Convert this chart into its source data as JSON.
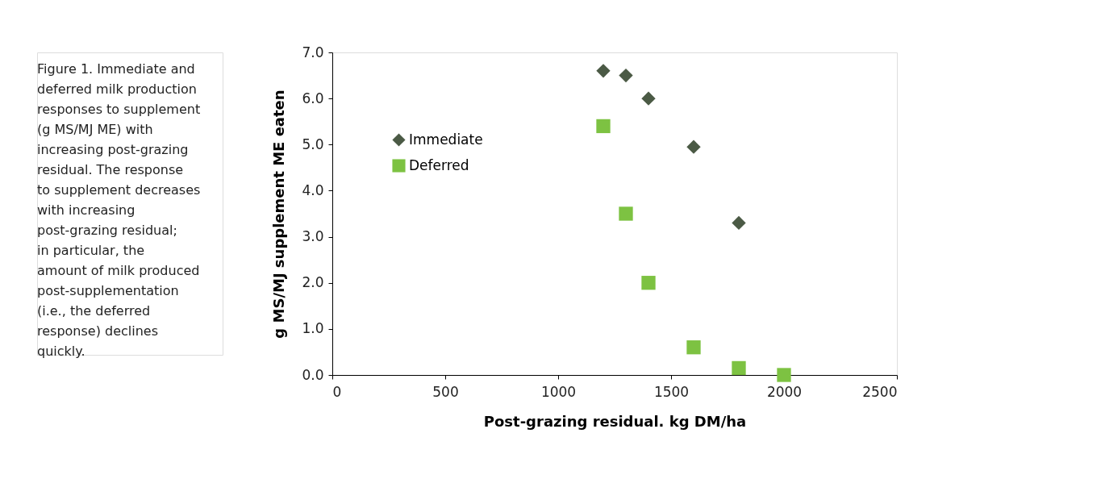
{
  "chart_data": {
    "type": "scatter",
    "xlabel": "Post-grazing residual. kg DM/ha",
    "ylabel": "g MS/MJ supplement ME eaten",
    "annotations": [
      "Figure 1. Immediate and deferred milk production responses to supplement (g MS/MJ ME) with increasing post-grazing residual. The response to supplement decreases with increasing post-grazing residual; in particular, the amount of milk produced post-supplementation (i.e., the deferred response) declines quickly."
    ],
    "series": [
      {
        "name": "Immediate",
        "color": "#4b5a45",
        "marker": "diamond",
        "x": [
          1200,
          1300,
          1400,
          1600,
          1800
        ],
        "values": [
          6.6,
          6.5,
          6.0,
          4.95,
          3.3
        ]
      },
      {
        "name": "Deferred",
        "color": "#7dc242",
        "marker": "square",
        "x": [
          1200,
          1300,
          1400,
          1600,
          1800,
          2000
        ],
        "values": [
          5.4,
          3.5,
          2.0,
          0.6,
          0.15,
          0.0
        ]
      }
    ],
    "xlim": [
      0,
      2500
    ],
    "xticks": [
      0,
      500,
      1000,
      1500,
      2000,
      2500
    ],
    "ylim": [
      0,
      7
    ],
    "yticks": [
      {
        "value": 0,
        "label": "0.0"
      },
      {
        "value": 1,
        "label": "1.0"
      },
      {
        "value": 2,
        "label": "2.0"
      },
      {
        "value": 3,
        "label": "3.0"
      },
      {
        "value": 4,
        "label": "4.0"
      },
      {
        "value": 5,
        "label": "5.0"
      },
      {
        "value": 6,
        "label": "6.0"
      },
      {
        "value": 7,
        "label": "7.0"
      }
    ],
    "grid": false,
    "legend": "top left"
  }
}
